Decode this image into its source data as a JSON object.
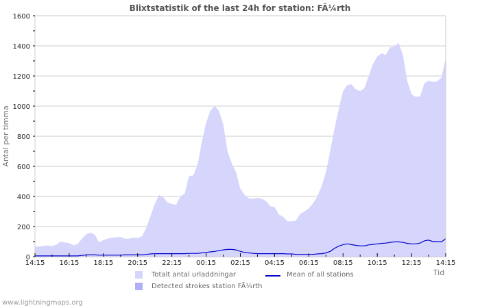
{
  "chart_data": {
    "type": "area",
    "title": "Blixtstatistik of the last 24h for station: FÃ¼rth",
    "xlabel": "Tid",
    "ylabel": "Antal per timma",
    "ylim": [
      0,
      1600
    ],
    "yticks": [
      0,
      200,
      400,
      600,
      800,
      1000,
      1200,
      1400,
      1600
    ],
    "xticks": [
      "14:15",
      "16:15",
      "18:15",
      "20:15",
      "22:15",
      "00:15",
      "02:15",
      "04:15",
      "06:15",
      "08:15",
      "10:15",
      "12:15",
      "14:15"
    ],
    "grid": true,
    "legend_position": "bottom",
    "x": [
      "14:15",
      "14:30",
      "14:45",
      "15:00",
      "15:15",
      "15:30",
      "15:45",
      "16:00",
      "16:15",
      "16:30",
      "16:45",
      "17:00",
      "17:15",
      "17:30",
      "17:45",
      "18:00",
      "18:15",
      "18:30",
      "18:45",
      "19:00",
      "19:15",
      "19:30",
      "19:45",
      "20:00",
      "20:15",
      "20:30",
      "20:45",
      "21:00",
      "21:15",
      "21:30",
      "21:45",
      "22:00",
      "22:15",
      "22:30",
      "22:45",
      "23:00",
      "23:15",
      "23:30",
      "23:45",
      "00:00",
      "00:15",
      "00:30",
      "00:45",
      "01:00",
      "01:15",
      "01:30",
      "01:45",
      "02:00",
      "02:15",
      "02:30",
      "02:45",
      "03:00",
      "03:15",
      "03:30",
      "03:45",
      "04:00",
      "04:15",
      "04:30",
      "04:45",
      "05:00",
      "05:15",
      "05:30",
      "05:45",
      "06:00",
      "06:15",
      "06:30",
      "06:45",
      "07:00",
      "07:15",
      "07:30",
      "07:45",
      "08:00",
      "08:15",
      "08:30",
      "08:45",
      "09:00",
      "09:15",
      "09:30",
      "09:45",
      "10:00",
      "10:15",
      "10:30",
      "10:45",
      "11:00",
      "11:15",
      "11:30",
      "11:45",
      "12:00",
      "12:15",
      "12:30",
      "12:45",
      "13:00",
      "13:15",
      "13:30",
      "13:45",
      "14:00",
      "14:15"
    ],
    "series": [
      {
        "name": "Totalt antal urladdningar",
        "kind": "area",
        "color": "#d6d6fc",
        "values": [
          65,
          68,
          72,
          75,
          70,
          80,
          100,
          95,
          90,
          75,
          85,
          120,
          150,
          160,
          145,
          95,
          110,
          120,
          125,
          130,
          130,
          120,
          120,
          125,
          125,
          135,
          190,
          270,
          350,
          410,
          395,
          360,
          350,
          345,
          400,
          420,
          535,
          540,
          610,
          760,
          890,
          970,
          1000,
          970,
          880,
          700,
          620,
          560,
          450,
          410,
          385,
          385,
          390,
          385,
          370,
          335,
          330,
          280,
          265,
          235,
          235,
          240,
          285,
          300,
          320,
          355,
          400,
          470,
          560,
          700,
          850,
          980,
          1100,
          1140,
          1145,
          1110,
          1100,
          1120,
          1200,
          1280,
          1330,
          1350,
          1340,
          1390,
          1395,
          1420,
          1340,
          1170,
          1080,
          1060,
          1065,
          1150,
          1170,
          1160,
          1165,
          1190,
          1320
        ]
      },
      {
        "name": "Detected strokes station FÃ¼rth",
        "kind": "area",
        "color": "#b0b0f8",
        "values": []
      },
      {
        "name": "Mean of all stations",
        "kind": "line",
        "color": "#0000cc",
        "values": [
          5,
          5,
          5,
          5,
          5,
          5,
          5,
          5,
          5,
          5,
          5,
          8,
          12,
          12,
          12,
          10,
          10,
          10,
          10,
          10,
          10,
          12,
          12,
          12,
          12,
          12,
          15,
          18,
          20,
          20,
          20,
          20,
          20,
          20,
          20,
          20,
          22,
          22,
          22,
          25,
          28,
          32,
          35,
          40,
          45,
          48,
          48,
          45,
          35,
          28,
          25,
          22,
          20,
          20,
          20,
          20,
          20,
          20,
          20,
          18,
          18,
          15,
          15,
          15,
          15,
          15,
          18,
          20,
          25,
          35,
          55,
          70,
          80,
          85,
          80,
          75,
          72,
          72,
          78,
          82,
          85,
          88,
          90,
          95,
          98,
          98,
          95,
          88,
          85,
          85,
          90,
          105,
          110,
          100,
          100,
          98,
          120
        ]
      }
    ]
  },
  "title": "Blixtstatistik of the last 24h for station: FÃ¼rth",
  "axes": {
    "y_title": "Antal per timma",
    "x_title": "Tid",
    "y_ticks": [
      "0",
      "200",
      "400",
      "600",
      "800",
      "1000",
      "1200",
      "1400",
      "1600"
    ],
    "x_ticks": [
      "14:15",
      "16:15",
      "18:15",
      "20:15",
      "22:15",
      "00:15",
      "02:15",
      "04:15",
      "06:15",
      "08:15",
      "10:15",
      "12:15",
      "14:15"
    ]
  },
  "legend": {
    "items": [
      {
        "label": "Totalt antal urladdningar",
        "color": "#d6d6fc",
        "kind": "swatch"
      },
      {
        "label": "Mean of all stations",
        "color": "#0000cc",
        "kind": "line"
      },
      {
        "label": "Detected strokes station FÃ¼rth",
        "color": "#b0b0f8",
        "kind": "swatch"
      }
    ]
  },
  "footer": "www.lightningmaps.org"
}
